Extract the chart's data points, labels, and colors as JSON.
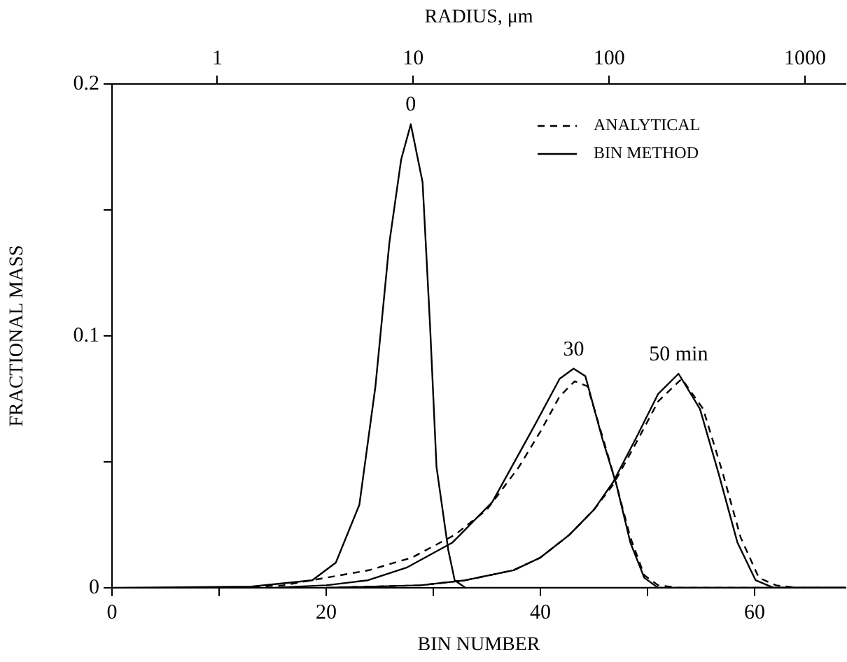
{
  "chart_data": {
    "type": "line",
    "xlabel": "BIN NUMBER",
    "ylabel": "FRACTIONAL MASS",
    "x2label": "RADIUS, μm",
    "xlim": [
      0,
      68.5
    ],
    "xticks": [
      0,
      {
        "value": 10,
        "label": null
      },
      20,
      {
        "value": 30,
        "label": null
      },
      40,
      {
        "value": 50,
        "label": null
      },
      60
    ],
    "ylim": [
      0,
      0.2
    ],
    "yticks": [
      0,
      {
        "value": 0.05,
        "label": null
      },
      0.1,
      {
        "value": 0.15,
        "label": null
      },
      0.2
    ],
    "x2lim": [
      0.29,
      1610
    ],
    "x2ticks": [
      1,
      10,
      100,
      1000
    ],
    "log": "x2",
    "grid": false,
    "legend": "top right",
    "marker": "none",
    "series": [
      {
        "name": "ANALYTICAL",
        "color": "#000000",
        "line_style": "dashed",
        "x": [
          12,
          16,
          20,
          24,
          28,
          32,
          35,
          38,
          40,
          41.8,
          43.2,
          44.4,
          45.8,
          47.1,
          48.4,
          49.7,
          51,
          53,
          68.5
        ],
        "values": [
          0,
          0.001,
          0.004,
          0.007,
          0.012,
          0.021,
          0.031,
          0.048,
          0.062,
          0.076,
          0.082,
          0.08,
          0.06,
          0.041,
          0.02,
          0.005,
          0.001,
          0,
          0
        ]
      },
      {
        "color": "#000000",
        "line_style": "dashed",
        "x": [
          20,
          28.8,
          33,
          37.5,
          40,
          42.7,
          45,
          46.8,
          49,
          51,
          53.2,
          55.2,
          57,
          58.7,
          60.4,
          62,
          64,
          68.5
        ],
        "values": [
          0,
          0.001,
          0.003,
          0.007,
          0.012,
          0.021,
          0.031,
          0.041,
          0.058,
          0.074,
          0.083,
          0.071,
          0.046,
          0.02,
          0.004,
          0.001,
          0,
          0
        ]
      },
      {
        "name": "BIN METHOD",
        "color": "#000000",
        "line_style": "solid",
        "x": [
          0,
          13,
          18.7,
          20.9,
          23.1,
          24.6,
          25.9,
          27,
          27.9,
          29,
          29.7,
          30.3,
          31.4,
          32,
          33,
          68.5
        ],
        "values": [
          0,
          0.0005,
          0.003,
          0.01,
          0.033,
          0.08,
          0.137,
          0.17,
          0.184,
          0.161,
          0.104,
          0.048,
          0.015,
          0.003,
          0,
          0
        ]
      },
      {
        "color": "#000000",
        "line_style": "solid",
        "x": [
          15,
          20,
          23.9,
          27.5,
          31.8,
          35.5,
          39.4,
          41.8,
          43.1,
          44.2,
          45.8,
          47.1,
          48.4,
          49.7,
          51,
          68.5
        ],
        "values": [
          0,
          0.001,
          0.003,
          0.008,
          0.018,
          0.034,
          0.064,
          0.083,
          0.087,
          0.084,
          0.059,
          0.041,
          0.018,
          0.004,
          0,
          0
        ]
      },
      {
        "color": "#000000",
        "line_style": "solid",
        "x": [
          20,
          28.8,
          33,
          37.5,
          40,
          42.7,
          45,
          46.8,
          49,
          51,
          52.9,
          54.9,
          56.6,
          58.4,
          60.1,
          61.8,
          68.5
        ],
        "values": [
          0,
          0.001,
          0.003,
          0.007,
          0.012,
          0.021,
          0.031,
          0.042,
          0.06,
          0.077,
          0.085,
          0.071,
          0.046,
          0.018,
          0.003,
          0,
          0
        ]
      }
    ],
    "annotations": [
      {
        "text": "0",
        "x": 27.9,
        "y": 0.184
      },
      {
        "text": "30",
        "x": 43.1,
        "y": 0.087
      },
      {
        "text": "50 min",
        "x": 52.9,
        "y": 0.085
      }
    ]
  }
}
